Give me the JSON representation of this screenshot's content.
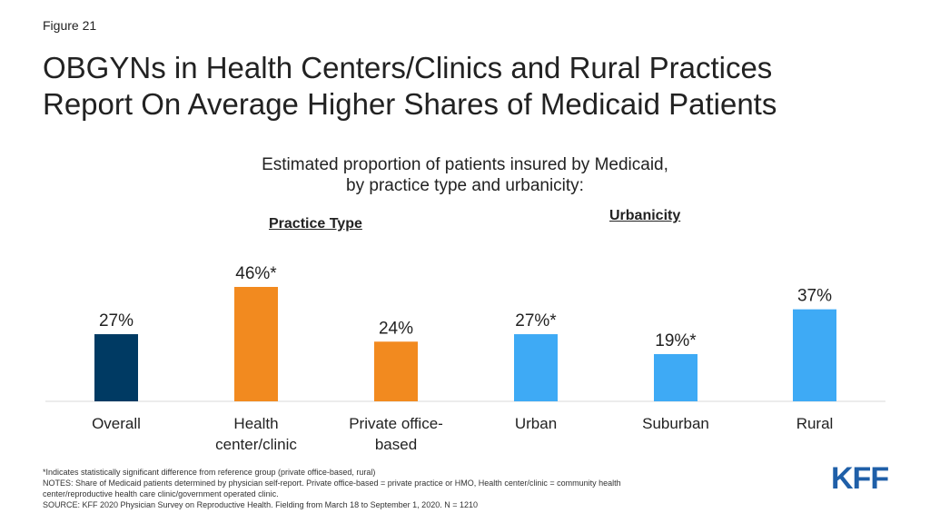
{
  "figure_label": "Figure 21",
  "title_line1": "OBGYNs in Health Centers/Clinics and Rural Practices",
  "title_line2": "Report On Average Higher Shares of Medicaid Patients",
  "chart_data": {
    "type": "bar",
    "title": "",
    "subtitle_line1": "Estimated proportion of patients insured by Medicaid,",
    "subtitle_line2": "by practice type and urbanicity:",
    "group_labels": {
      "practice": "Practice Type",
      "urbanicity": "Urbanicity"
    },
    "categories": [
      [
        "Overall"
      ],
      [
        "Health",
        "center/clinic"
      ],
      [
        "Private office-",
        "based"
      ],
      [
        "Urban"
      ],
      [
        "Suburban"
      ],
      [
        "Rural"
      ]
    ],
    "values": [
      27,
      46,
      24,
      27,
      19,
      37
    ],
    "data_labels": [
      "27%",
      "46%*",
      "24%",
      "27%*",
      "19%*",
      "37%"
    ],
    "colors": [
      "#003a63",
      "#f28a1f",
      "#f28a1f",
      "#3eaaf5",
      "#3eaaf5",
      "#3eaaf5"
    ],
    "ylim": [
      0,
      50
    ],
    "grid": false,
    "legend": "none"
  },
  "notes": {
    "line1": "*Indicates statistically significant difference from reference group (private office-based, rural)",
    "line2": "NOTES: Share of Medicaid patients determined by physician self-report. Private office-based = private practice or HMO, Health center/clinic = community health",
    "line3": "center/reproductive health care clinic/government operated clinic.",
    "line4": "SOURCE: KFF 2020 Physician Survey on Reproductive Health. Fielding from March 18 to September 1, 2020. N = 1210"
  },
  "logo": "KFF"
}
